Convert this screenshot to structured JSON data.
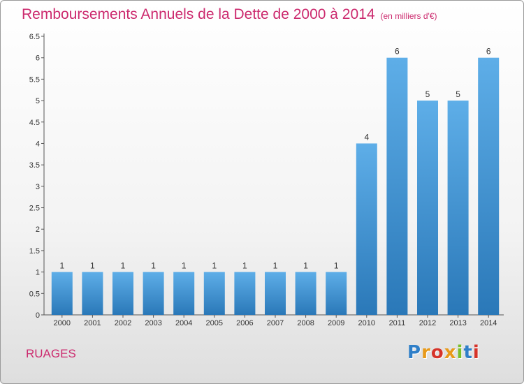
{
  "header": {
    "title": "Remboursements Annuels de la Dette de 2000 à 2014",
    "subtitle": "(en milliers d'€)"
  },
  "footer": {
    "commune": "RUAGES",
    "logo_text": "Proxiti"
  },
  "colors": {
    "title": "#cc2a6e",
    "bar_top": "#5eaee8",
    "bar_bottom": "#2a78b8",
    "logo": [
      "#2f7fc8",
      "#e89a1a",
      "#d6342a",
      "#e89a1a",
      "#7abf2a",
      "#2f7fc8",
      "#d6342a"
    ]
  },
  "chart_data": {
    "type": "bar",
    "title": "Remboursements Annuels de la Dette de 2000 à 2014",
    "subtitle": "(en milliers d'€)",
    "categories": [
      "2000",
      "2001",
      "2002",
      "2003",
      "2004",
      "2005",
      "2006",
      "2007",
      "2008",
      "2009",
      "2010",
      "2011",
      "2012",
      "2013",
      "2014"
    ],
    "values": [
      1,
      1,
      1,
      1,
      1,
      1,
      1,
      1,
      1,
      1,
      4,
      6,
      5,
      5,
      6
    ],
    "data_labels": [
      "1",
      "1",
      "1",
      "1",
      "1",
      "1",
      "1",
      "1",
      "1",
      "1",
      "4",
      "6",
      "5",
      "5",
      "6"
    ],
    "yticks": [
      "0",
      "0.5",
      "1",
      "1.5",
      "2",
      "2.5",
      "3",
      "3.5",
      "4",
      "4.5",
      "5",
      "5.5",
      "6",
      "6.5"
    ],
    "ylim": [
      0,
      6.5
    ],
    "xlabel": "",
    "ylabel": "",
    "grid": false
  }
}
